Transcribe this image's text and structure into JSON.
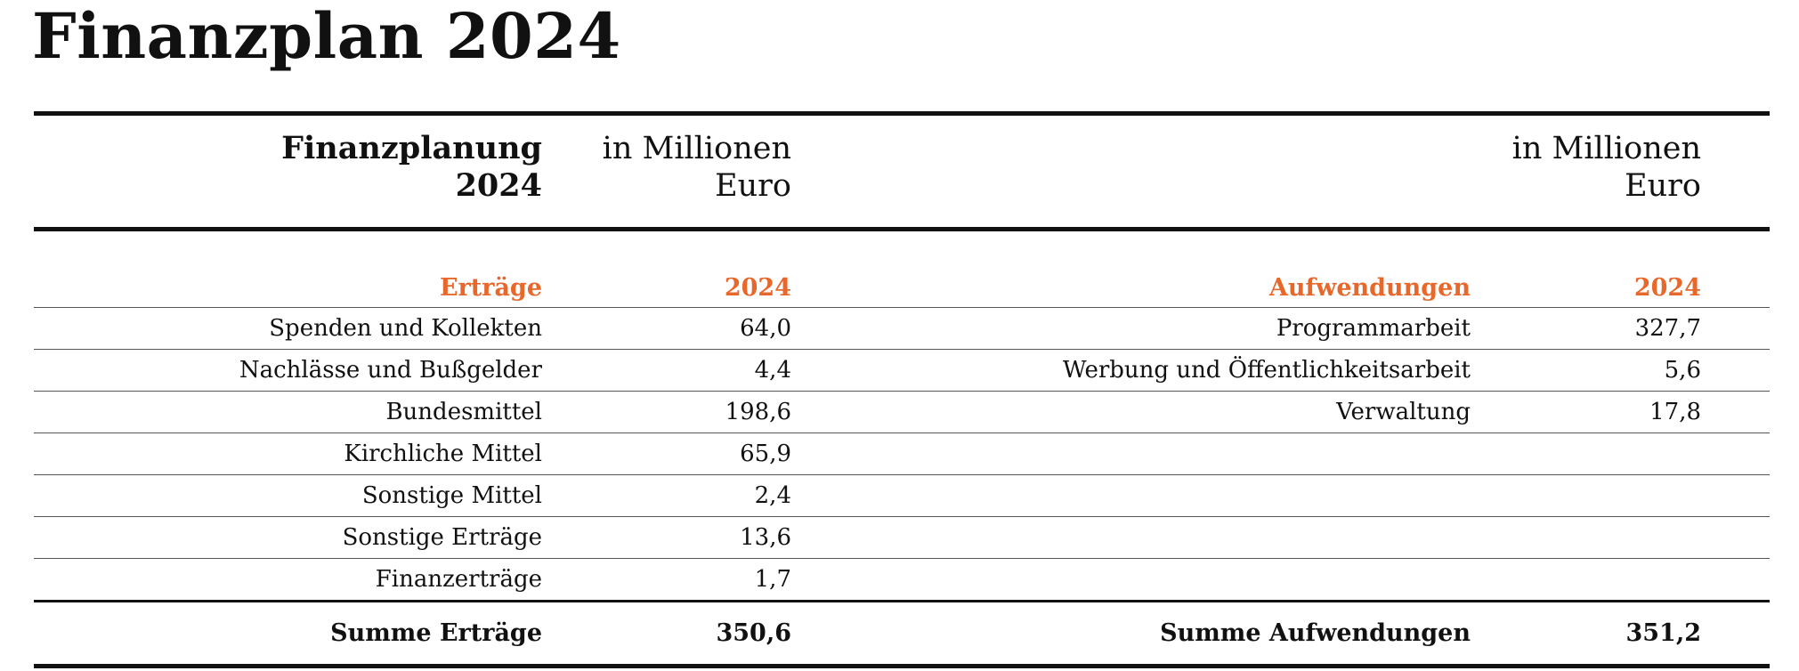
{
  "title": "Finanzplan 2024",
  "header": {
    "left_label_line1": "Finanzplanung",
    "left_label_line2": "2024",
    "left_unit_line1": "in Millionen",
    "left_unit_line2": "Euro",
    "right_unit_line1": "in Millionen",
    "right_unit_line2": "Euro"
  },
  "sections": {
    "income_label": "Erträge",
    "income_year": "2024",
    "expense_label": "Aufwendungen",
    "expense_year": "2024"
  },
  "rows": [
    {
      "income_item": "Spenden und Kollekten",
      "income_value": "64,0",
      "expense_item": "Programmarbeit",
      "expense_value": "327,7"
    },
    {
      "income_item": "Nachlässe und Bußgelder",
      "income_value": "4,4",
      "expense_item": "Werbung und Öffentlichkeitsarbeit",
      "expense_value": "5,6"
    },
    {
      "income_item": "Bundesmittel",
      "income_value": "198,6",
      "expense_item": "Verwaltung",
      "expense_value": "17,8"
    },
    {
      "income_item": "Kirchliche Mittel",
      "income_value": "65,9",
      "expense_item": "",
      "expense_value": ""
    },
    {
      "income_item": "Sonstige Mittel",
      "income_value": "2,4",
      "expense_item": "",
      "expense_value": ""
    },
    {
      "income_item": "Sonstige Erträge",
      "income_value": "13,6",
      "expense_item": "",
      "expense_value": ""
    },
    {
      "income_item": "Finanzerträge",
      "income_value": "1,7",
      "expense_item": "",
      "expense_value": ""
    }
  ],
  "totals": {
    "income_label": "Summe Erträge",
    "income_value": "350,6",
    "expense_label": "Summe Aufwendungen",
    "expense_value": "351,2"
  },
  "colors": {
    "accent": "#e8672a",
    "text": "#111111",
    "rule": "#555555"
  }
}
